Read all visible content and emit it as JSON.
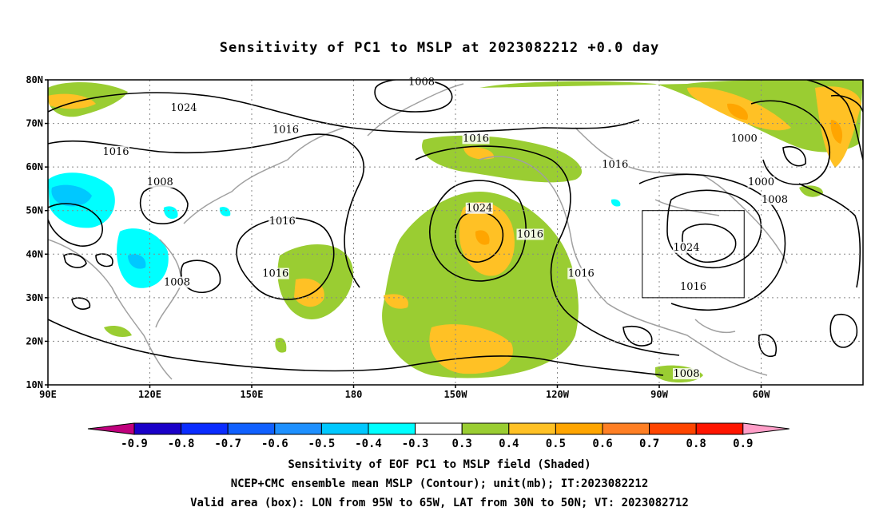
{
  "title": "Sensitivity of PC1 to MSLP at 2023082212 +0.0 day",
  "axes": {
    "lat_labels": [
      "80N",
      "70N",
      "60N",
      "50N",
      "40N",
      "30N",
      "20N",
      "10N"
    ],
    "lon_labels": [
      "90E",
      "120E",
      "150E",
      "180",
      "150W",
      "120W",
      "90W",
      "60W"
    ]
  },
  "contour_labels": [
    {
      "text": "1008",
      "lon": -160,
      "lat": 79
    },
    {
      "text": "1024",
      "lon": 130,
      "lat": 73
    },
    {
      "text": "1016",
      "lon": 110,
      "lat": 63
    },
    {
      "text": "1016",
      "lon": 160,
      "lat": 68
    },
    {
      "text": "1016",
      "lon": -144,
      "lat": 66
    },
    {
      "text": "1016",
      "lon": -103,
      "lat": 60
    },
    {
      "text": "1000",
      "lon": -65,
      "lat": 66
    },
    {
      "text": "1000",
      "lon": -60,
      "lat": 56
    },
    {
      "text": "1008",
      "lon": -56,
      "lat": 52
    },
    {
      "text": "1008",
      "lon": 123,
      "lat": 56
    },
    {
      "text": "1024",
      "lon": -143,
      "lat": 50
    },
    {
      "text": "1016",
      "lon": -128,
      "lat": 44
    },
    {
      "text": "1016",
      "lon": 159,
      "lat": 47
    },
    {
      "text": "1016",
      "lon": 157,
      "lat": 35
    },
    {
      "text": "1016",
      "lon": -113,
      "lat": 35
    },
    {
      "text": "1024",
      "lon": -82,
      "lat": 41
    },
    {
      "text": "1016",
      "lon": -80,
      "lat": 32
    },
    {
      "text": "1008",
      "lon": 128,
      "lat": 33
    },
    {
      "text": "1008",
      "lon": -82,
      "lat": 12
    }
  ],
  "valid_box": {
    "lon_west": -95,
    "lon_east": -65,
    "lat_south": 30,
    "lat_north": 50
  },
  "colorbar": {
    "labels": [
      "-0.9",
      "-0.8",
      "-0.7",
      "-0.6",
      "-0.5",
      "-0.4",
      "-0.3",
      "0.3",
      "0.4",
      "0.5",
      "0.6",
      "0.7",
      "0.8",
      "0.9"
    ],
    "colors": [
      "#c0007d",
      "#1a00c8",
      "#0a2cff",
      "#1060ff",
      "#1e90ff",
      "#00c8ff",
      "#00ffff",
      "#ffffff",
      "#9acd32",
      "#ffc125",
      "#ffa500",
      "#ff7f24",
      "#ff4500",
      "#ff1500",
      "#ff9ec8"
    ]
  },
  "captions": [
    "Sensitivity of EOF PC1 to MSLP field (Shaded)",
    "NCEP+CMC ensemble mean MSLP (Contour); unit(mb); IT:2023082212",
    "Valid area (box): LON from 95W to 65W, LAT from 30N to 50N; VT: 2023082712"
  ]
}
